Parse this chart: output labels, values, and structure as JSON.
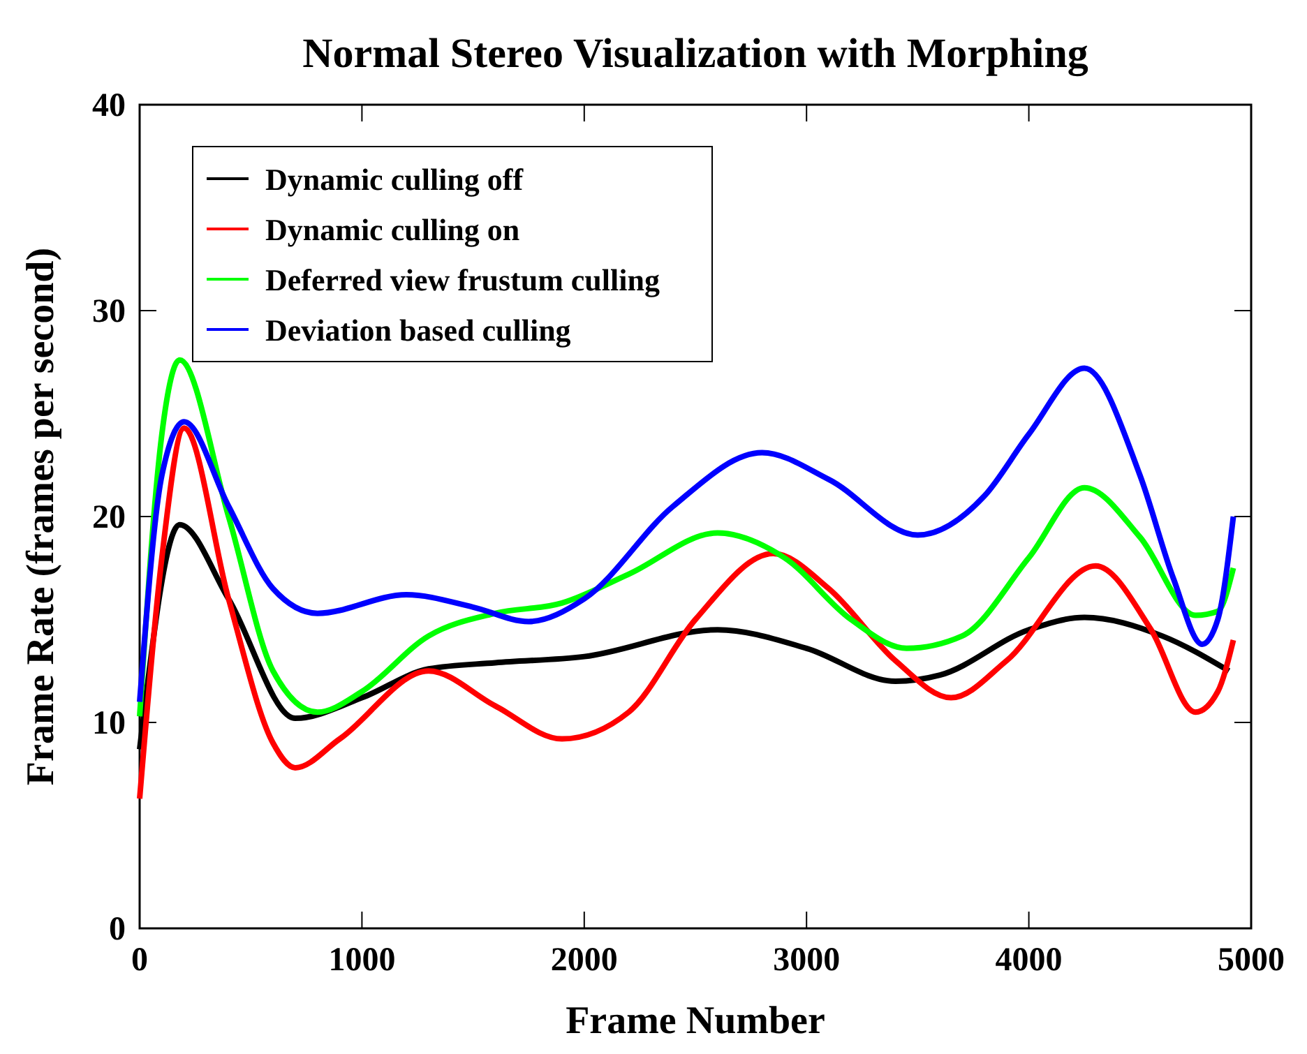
{
  "chart_data": {
    "type": "line",
    "title": "Normal Stereo Visualization with Morphing",
    "xlabel": "Frame Number",
    "ylabel": "Frame Rate (frames per second)",
    "xlim": [
      0,
      5000
    ],
    "xticks": [
      0,
      1000,
      2000,
      3000,
      4000,
      5000
    ],
    "ylim": [
      0,
      40
    ],
    "yticks": [
      0,
      10,
      20,
      30,
      40
    ],
    "grid": false,
    "legend": "top left",
    "line_style": "solid",
    "series": [
      {
        "name": "Dynamic culling off",
        "color": "#000000",
        "x": [
          0,
          180,
          400,
          700,
          1000,
          1300,
          1600,
          2000,
          2600,
          3000,
          3400,
          3600,
          4000,
          4250,
          4600,
          4900
        ],
        "values": [
          8.7,
          19.6,
          16,
          10.2,
          11.2,
          12.6,
          12.9,
          13.2,
          14.5,
          13.6,
          12,
          12.3,
          14.5,
          15.1,
          14.2,
          12.5
        ]
      },
      {
        "name": "Dynamic culling on",
        "color": "#ff0000",
        "x": [
          0,
          100,
          200,
          400,
          600,
          700,
          900,
          1300,
          1600,
          1900,
          2200,
          2500,
          2850,
          3100,
          3400,
          3650,
          3900,
          4300,
          4550,
          4750,
          4850,
          4920
        ],
        "values": [
          6.3,
          18,
          24.3,
          16,
          9,
          7.8,
          9.2,
          12.5,
          10.8,
          9.2,
          10.5,
          15,
          18.2,
          16.5,
          13,
          11.2,
          13,
          17.6,
          14.5,
          10.5,
          11.5,
          14
        ]
      },
      {
        "name": "Deferred view frustum culling",
        "color": "#00ff00",
        "x": [
          0,
          100,
          180,
          400,
          600,
          800,
          1000,
          1300,
          1600,
          1900,
          2200,
          2600,
          2900,
          3200,
          3450,
          3700,
          4000,
          4250,
          4500,
          4750,
          4850,
          4920
        ],
        "values": [
          10.3,
          24,
          27.6,
          20,
          12.5,
          10.5,
          11.5,
          14.2,
          15.3,
          15.8,
          17.2,
          19.2,
          18,
          15,
          13.6,
          14.2,
          18,
          21.4,
          19,
          15.2,
          15.4,
          17.5
        ]
      },
      {
        "name": "Deviation based culling",
        "color": "#0000ff",
        "x": [
          0,
          100,
          200,
          400,
          600,
          800,
          1200,
          1500,
          1750,
          2000,
          2400,
          2800,
          3100,
          3500,
          3800,
          4000,
          4250,
          4500,
          4650,
          4780,
          4850,
          4920
        ],
        "values": [
          11,
          22,
          24.6,
          20.5,
          16.5,
          15.3,
          16.2,
          15.6,
          14.9,
          16,
          20.5,
          23.1,
          21.8,
          19.1,
          21,
          24,
          27.2,
          22,
          17,
          13.8,
          15,
          20
        ]
      }
    ]
  }
}
